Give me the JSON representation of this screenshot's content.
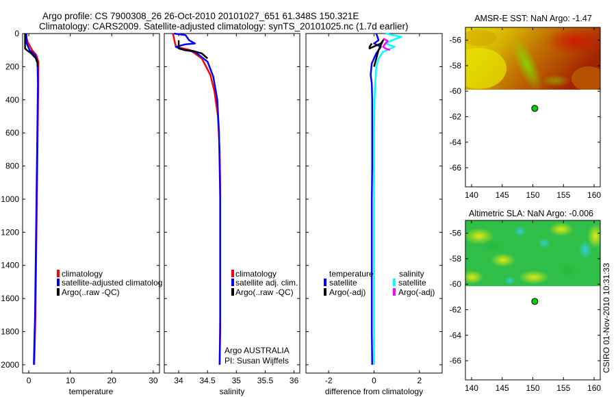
{
  "header": {
    "title_line1": "Argo profile: CS 7900308_26 26-Oct-2010 20101027_651 61.348S 150.321E",
    "title_line2": "Climatology: CARS2009. Satellite-adjusted climatology: synTS_20101025.nc (1.7d earlier)"
  },
  "colors": {
    "red": "#ff0000",
    "blue": "#0000ff",
    "black": "#000000",
    "cyan": "#00ffff",
    "magenta": "#ff00ff"
  },
  "watermark": "CSIRO 01-Nov-2010 10:31:33",
  "chart_data": [
    {
      "id": "temperature",
      "type": "line",
      "xlabel": "temperature",
      "xlim": [
        -1.5,
        31.5
      ],
      "ylim": [
        0,
        2050
      ],
      "y_reversed": true,
      "xticks": [
        0,
        10,
        20,
        30
      ],
      "xtick_labels": [
        "0",
        "10",
        "20",
        "30"
      ],
      "yticks": [
        0,
        200,
        400,
        600,
        800,
        1000,
        1200,
        1400,
        1600,
        1800,
        2000
      ],
      "ytick_labels": [
        "0",
        "200",
        "400",
        "600",
        "800",
        "1000",
        "1200",
        "1400",
        "1600",
        "1800",
        "2000"
      ],
      "legend": [
        "climatology",
        "satellite-adjusted climatolog",
        "Argo(..raw -QC)"
      ],
      "legend_colors": [
        "#ff0000",
        "#0000ff",
        "#000000"
      ],
      "series": [
        {
          "name": "climatology",
          "color": "#ff0000",
          "x": [
            -0.8,
            -0.3,
            0.8,
            1.8,
            2.3,
            2.3,
            2.2,
            2.1,
            2.0,
            1.9,
            1.8,
            1.7,
            1.6,
            1.5,
            1.4,
            1.3
          ],
          "y": [
            0,
            50,
            100,
            130,
            170,
            300,
            500,
            700,
            900,
            1100,
            1300,
            1500,
            1700,
            1800,
            1900,
            2000
          ]
        },
        {
          "name": "satellite-adjusted climatology",
          "color": "#0000ff",
          "x": [
            -0.6,
            -0.5,
            0.2,
            1.5,
            2.1,
            2.2,
            2.1,
            2.0,
            1.9,
            1.8,
            1.7,
            1.6,
            1.5,
            1.4,
            1.3,
            1.2
          ],
          "y": [
            0,
            60,
            100,
            130,
            170,
            300,
            500,
            700,
            900,
            1100,
            1300,
            1500,
            1700,
            1800,
            1900,
            2000
          ]
        },
        {
          "name": "Argo(..raw -QC)",
          "color": "#000000",
          "x": [
            -0.9,
            -0.9,
            -0.5,
            0.6,
            1.7,
            2.1,
            2.1
          ],
          "y": [
            0,
            90,
            100,
            120,
            150,
            180,
            200
          ]
        }
      ]
    },
    {
      "id": "salinity",
      "type": "line",
      "xlabel": "salinity",
      "xlim": [
        33.75,
        36.1
      ],
      "ylim": [
        0,
        2050
      ],
      "y_reversed": true,
      "xticks": [
        34,
        34.5,
        35,
        35.5,
        36
      ],
      "xtick_labels": [
        "34",
        "34.5",
        "35",
        "35.5",
        "36"
      ],
      "yticks": [
        0,
        200,
        400,
        600,
        800,
        1000,
        1200,
        1400,
        1600,
        1800,
        2000
      ],
      "legend": [
        "climatology",
        "satellite adj. clim.",
        "Argo(..raw -QC)"
      ],
      "legend_colors": [
        "#ff0000",
        "#0000ff",
        "#000000"
      ],
      "annotation_line1": "Argo AUSTRALIA",
      "annotation_line2": "PI: Susan Wijffels",
      "series": [
        {
          "name": "climatology",
          "color": "#ff0000",
          "x": [
            33.9,
            33.95,
            34.2,
            34.4,
            34.55,
            34.62,
            34.68,
            34.71,
            34.72,
            34.72,
            34.72,
            34.72,
            34.71
          ],
          "y": [
            0,
            80,
            100,
            150,
            250,
            350,
            500,
            700,
            900,
            1100,
            1400,
            1700,
            2000
          ]
        },
        {
          "name": "satellite adj. clim.",
          "color": "#0000ff",
          "x": [
            33.92,
            34.12,
            34.18,
            34.28,
            34.12,
            33.95,
            34.1,
            34.28,
            34.5,
            34.6,
            34.67,
            34.7,
            34.71,
            34.72,
            34.72,
            34.72,
            34.72,
            34.71
          ],
          "y": [
            0,
            10,
            40,
            60,
            65,
            80,
            100,
            110,
            170,
            260,
            400,
            600,
            800,
            1000,
            1200,
            1500,
            1800,
            2000
          ]
        },
        {
          "name": "Argo(..raw -QC)",
          "color": "#000000",
          "x": [
            34.0,
            34.0,
            34.1,
            34.25,
            34.4,
            34.5
          ],
          "y": [
            40,
            90,
            100,
            105,
            120,
            150
          ]
        }
      ]
    },
    {
      "id": "difference",
      "type": "line",
      "xlabel": "difference from climatology",
      "xlim": [
        -3,
        3
      ],
      "ylim": [
        0,
        2050
      ],
      "y_reversed": true,
      "xticks": [
        -2,
        0,
        2
      ],
      "xtick_labels": [
        "-2",
        "0",
        "2"
      ],
      "yticks": [
        0,
        200,
        400,
        600,
        800,
        1000,
        1200,
        1400,
        1600,
        1800,
        2000
      ],
      "legend_group1_title": "temperature",
      "legend_group2_title": "salinity",
      "legend_group1": [
        "satellite",
        "Argo(-adj)"
      ],
      "legend_group1_colors": [
        "#0000ff",
        "#000000"
      ],
      "legend_group2": [
        "satellite",
        "Argo(-adj)"
      ],
      "legend_group2_colors": [
        "#00ffff",
        "#ff00ff"
      ],
      "series": [
        {
          "name": "temperature satellite",
          "color": "#0000ff",
          "x": [
            0.1,
            0.2,
            0.0,
            0.3,
            0.1,
            -0.1,
            -0.15,
            -0.1,
            -0.08,
            -0.08,
            -0.08,
            -0.1,
            -0.1,
            -0.1,
            -0.1,
            -0.08
          ],
          "y": [
            0,
            40,
            60,
            80,
            120,
            180,
            250,
            300,
            400,
            600,
            800,
            1000,
            1300,
            1600,
            1800,
            2000
          ]
        },
        {
          "name": "temperature Argo(-adj)",
          "color": "#000000",
          "x": [
            -0.1,
            -0.2,
            -0.2,
            0.3,
            0.4,
            0.2,
            0.1,
            0.0
          ],
          "y": [
            60,
            80,
            90,
            60,
            40,
            100,
            150,
            200
          ]
        },
        {
          "name": "salinity satellite",
          "color": "#00ffff",
          "x": [
            0.5,
            1.2,
            0.8,
            0.5,
            0.9,
            0.4,
            0.2,
            0.1,
            0.05,
            0.02,
            0.0,
            0.0,
            0.0,
            0.0,
            0.0,
            0.0
          ],
          "y": [
            0,
            20,
            40,
            60,
            80,
            110,
            150,
            200,
            300,
            400,
            600,
            800,
            1000,
            1400,
            1800,
            2000
          ]
        },
        {
          "name": "salinity Argo(-adj)",
          "color": "#ff00ff",
          "x": [
            0.4,
            0.6,
            0.5,
            0.45,
            0.4,
            0.5,
            0.7
          ],
          "y": [
            30,
            45,
            60,
            70,
            80,
            90,
            100
          ]
        }
      ]
    },
    {
      "id": "sst_map",
      "type": "heatmap",
      "title": "AMSR-E SST: NaN Argo: -1.47",
      "xlim": [
        139,
        161
      ],
      "ylim": [
        -67.5,
        -55
      ],
      "xticks": [
        140,
        145,
        150,
        155,
        160
      ],
      "xtick_labels": [
        "140",
        "145",
        "150",
        "155",
        "160"
      ],
      "yticks": [
        -56,
        -58,
        -60,
        -62,
        -64,
        -66
      ],
      "ytick_labels": [
        "-56",
        "-58",
        "-60",
        "-62",
        "-64",
        "-66"
      ],
      "data_lat_range": [
        -60,
        -55
      ],
      "marker": {
        "lon": 150.321,
        "lat": -61.348,
        "color": "#00cc00"
      }
    },
    {
      "id": "sla_map",
      "type": "heatmap",
      "title": "Altimetric SLA: NaN Argo: -0.006",
      "xlim": [
        139,
        161
      ],
      "ylim": [
        -67.5,
        -55
      ],
      "xticks": [
        140,
        145,
        150,
        155,
        160
      ],
      "xtick_labels": [
        "140",
        "145",
        "150",
        "155",
        "160"
      ],
      "yticks": [
        -56,
        -58,
        -60,
        -62,
        -64,
        -66
      ],
      "ytick_labels": [
        "-56",
        "-58",
        "-60",
        "-62",
        "-64",
        "-66"
      ],
      "data_lat_range": [
        -60,
        -55
      ],
      "marker": {
        "lon": 150.321,
        "lat": -61.348,
        "color": "#00cc00"
      }
    }
  ]
}
